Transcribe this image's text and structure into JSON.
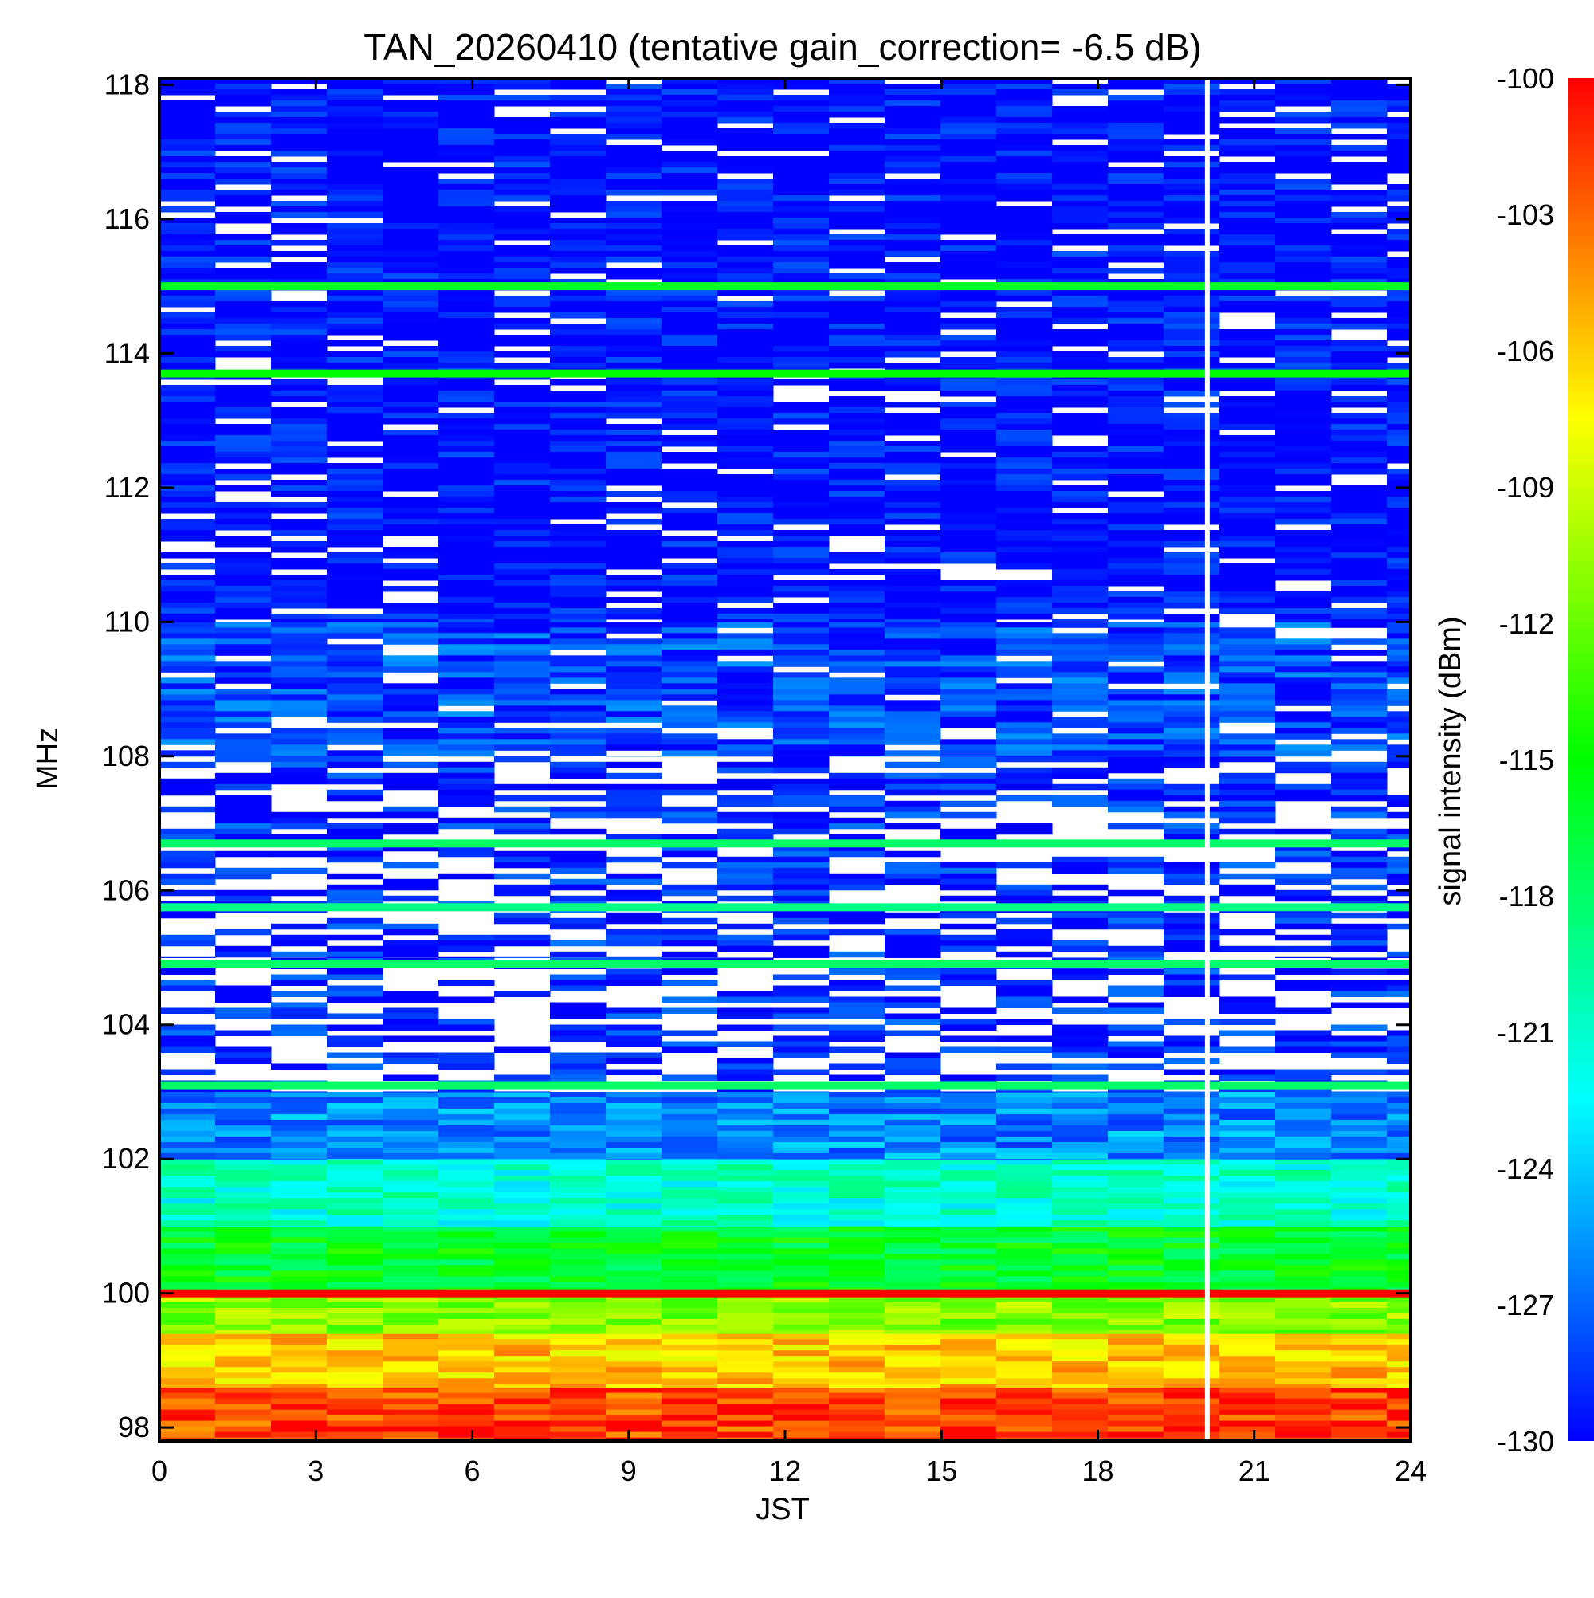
{
  "chart_data": {
    "type": "heatmap",
    "title": "TAN_20260410 (tentative gain_correction= -6.5 dB)",
    "xlabel": "JST",
    "ylabel": "MHz",
    "colorbar_label": "signal intensity (dBm)",
    "xlim": [
      0,
      24
    ],
    "ylim": [
      97.8,
      118.1
    ],
    "clim": [
      -130,
      -100
    ],
    "x_ticks": [
      0,
      3,
      6,
      9,
      12,
      15,
      18,
      21,
      24
    ],
    "x_tick_labels": [
      "0",
      "3",
      "6",
      "9",
      "12",
      "15",
      "18",
      "21",
      "24"
    ],
    "y_ticks": [
      98,
      100,
      102,
      104,
      106,
      108,
      110,
      112,
      114,
      116,
      118
    ],
    "y_tick_labels": [
      "98",
      "100",
      "102",
      "104",
      "106",
      "108",
      "110",
      "112",
      "114",
      "116",
      "118"
    ],
    "colorbar_ticks": [
      -100,
      -103,
      -106,
      -109,
      -112,
      -115,
      -118,
      -121,
      -124,
      -127,
      -130
    ],
    "colorbar_tick_labels": [
      "-100",
      "-103",
      "-106",
      "-109",
      "-112",
      "-115",
      "-118",
      "-121",
      "-124",
      "-127",
      "-130"
    ],
    "colormap": [
      "#0000ff",
      "#0080ff",
      "#00ffff",
      "#00ff80",
      "#00ff00",
      "#80ff00",
      "#ffff00",
      "#ff8000",
      "#ff0000"
    ],
    "missing_color": "#ffffff",
    "gap_time_jst": 20.1,
    "frequency_bands": [
      {
        "from": 97.8,
        "to": 98.6,
        "dbm": -102
      },
      {
        "from": 98.6,
        "to": 99.4,
        "dbm": -106
      },
      {
        "from": 99.4,
        "to": 99.95,
        "dbm": -111
      },
      {
        "from": 99.95,
        "to": 100.05,
        "dbm": -100
      },
      {
        "from": 100.05,
        "to": 101.0,
        "dbm": -116
      },
      {
        "from": 101.0,
        "to": 102.0,
        "dbm": -121
      },
      {
        "from": 102.0,
        "to": 103.0,
        "dbm": -126
      },
      {
        "from": 103.0,
        "to": 105.0,
        "dbm": -129
      },
      {
        "from": 105.0,
        "to": 108.0,
        "dbm": -129
      },
      {
        "from": 108.0,
        "to": 110.0,
        "dbm": -128
      },
      {
        "from": 110.0,
        "to": 118.1,
        "dbm": -130
      }
    ],
    "strong_lines": [
      {
        "freq_mhz": 100.0,
        "dbm": -100
      },
      {
        "freq_mhz": 113.7,
        "dbm": -115
      },
      {
        "freq_mhz": 115.0,
        "dbm": -116
      },
      {
        "freq_mhz": 104.9,
        "dbm": -118
      },
      {
        "freq_mhz": 106.7,
        "dbm": -118
      },
      {
        "freq_mhz": 103.1,
        "dbm": -118
      },
      {
        "freq_mhz": 105.75,
        "dbm": -119
      }
    ]
  }
}
